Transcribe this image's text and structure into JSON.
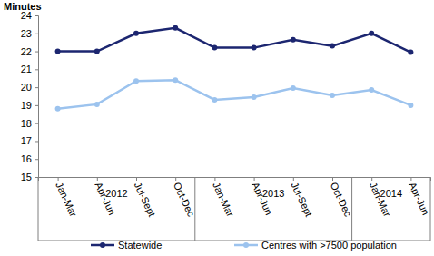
{
  "chart_data": {
    "type": "line",
    "y_label": "Minutes",
    "categories": [
      "Jan-Mar",
      "Apr-Jun",
      "Jul-Sept",
      "Oct-Dec",
      "Jan-Mar",
      "Apr-Jun",
      "Jul-Sept",
      "Oct-Dec",
      "Jan-Mar",
      "Apr-Jun"
    ],
    "year_groups": [
      {
        "label": "2012",
        "count": 4
      },
      {
        "label": "2013",
        "count": 4
      },
      {
        "label": "2014",
        "count": 2
      }
    ],
    "series": [
      {
        "name": "Statewide",
        "color": "#1c2670",
        "marker": "circle",
        "values": [
          22.0,
          22.0,
          23.0,
          23.3,
          22.2,
          22.2,
          22.65,
          22.3,
          23.0,
          21.95
        ]
      },
      {
        "name": "Centres with >7500 population",
        "color": "#9cc3ee",
        "marker": "circle",
        "values": [
          18.8,
          19.05,
          20.35,
          20.4,
          19.3,
          19.45,
          19.95,
          19.55,
          19.85,
          19.0
        ]
      }
    ],
    "ylim": [
      15,
      24
    ],
    "yticks": [
      15,
      16,
      17,
      18,
      19,
      20,
      21,
      22,
      23,
      24
    ],
    "grid": false,
    "legend": "bottom"
  }
}
